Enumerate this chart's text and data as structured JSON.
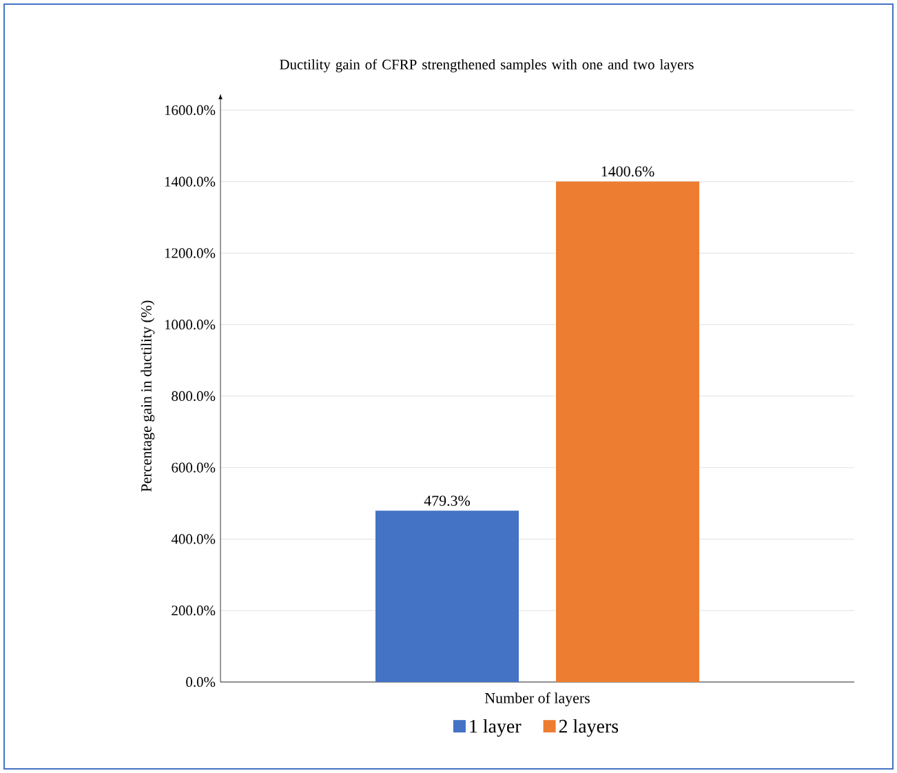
{
  "chart_data": {
    "type": "bar",
    "title": "Ductility gain of CFRP strengthened samples with one and two layers",
    "xlabel": "Number of layers",
    "ylabel": "Percentage gain in ductility (%)",
    "categories": [
      null
    ],
    "series": [
      {
        "name": "1 layer",
        "color": "#4472c4",
        "values": [
          479.3
        ],
        "value_labels": [
          "479.3%"
        ]
      },
      {
        "name": "2 layers",
        "color": "#ed7d31",
        "values": [
          1400.6
        ],
        "value_labels": [
          "1400.6%"
        ]
      }
    ],
    "ylim": [
      0,
      1600
    ],
    "yticks": [
      {
        "value": 0,
        "label": "0.0%"
      },
      {
        "value": 200,
        "label": "200.0%"
      },
      {
        "value": 400,
        "label": "400.0%"
      },
      {
        "value": 600,
        "label": "600.0%"
      },
      {
        "value": 800,
        "label": "800.0%"
      },
      {
        "value": 1000,
        "label": "1000.0%"
      },
      {
        "value": 1200,
        "label": "1200.0%"
      },
      {
        "value": 1400,
        "label": "1400.0%"
      },
      {
        "value": 1600,
        "label": "1600.0%"
      }
    ],
    "grid": "y",
    "legend": "bottom"
  }
}
